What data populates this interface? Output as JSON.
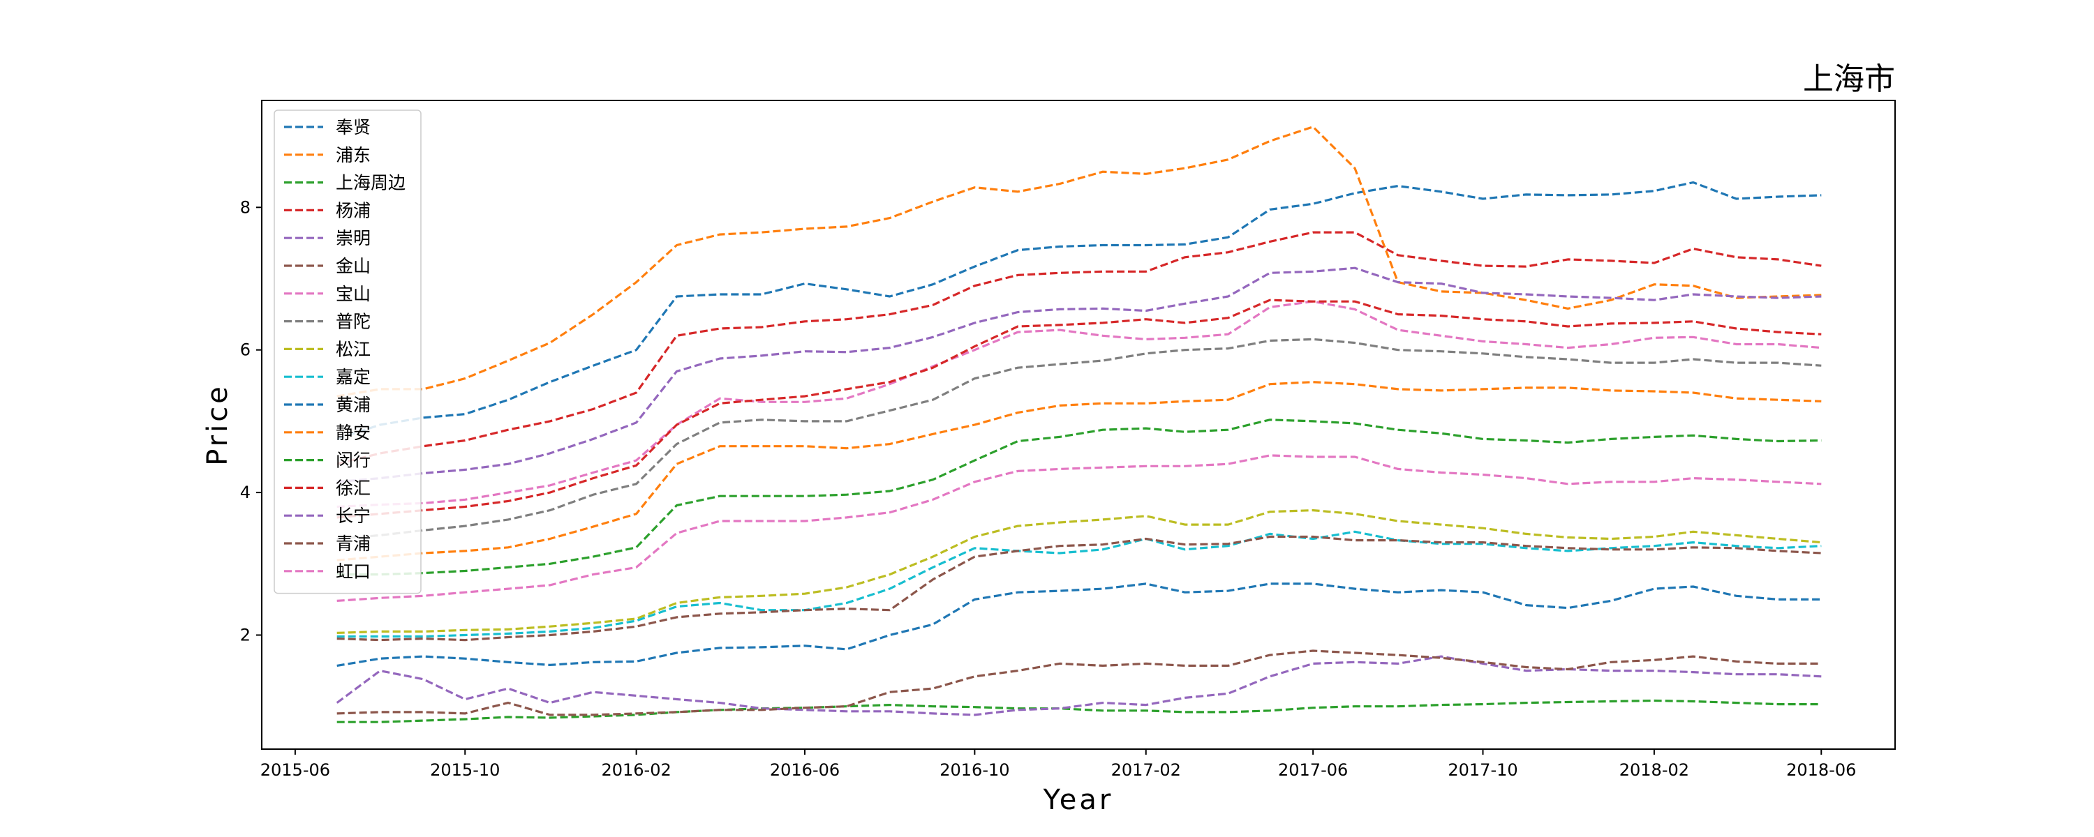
{
  "chart_data": {
    "type": "line",
    "title": "上海市",
    "xlabel": "Year",
    "ylabel": "Price",
    "x": [
      "2015-07",
      "2015-08",
      "2015-09",
      "2015-10",
      "2015-11",
      "2015-12",
      "2016-01",
      "2016-02",
      "2016-03",
      "2016-04",
      "2016-05",
      "2016-06",
      "2016-07",
      "2016-08",
      "2016-09",
      "2016-10",
      "2016-11",
      "2016-12",
      "2017-01",
      "2017-02",
      "2017-03",
      "2017-04",
      "2017-05",
      "2017-06",
      "2017-07",
      "2017-08",
      "2017-09",
      "2017-10",
      "2017-11",
      "2017-12",
      "2018-01",
      "2018-02",
      "2018-03",
      "2018-04",
      "2018-05",
      "2018-06"
    ],
    "xticks": [
      "2015-06",
      "2015-10",
      "2016-02",
      "2016-06",
      "2016-10",
      "2017-02",
      "2017-06",
      "2017-10",
      "2018-02",
      "2018-06"
    ],
    "xlim": [
      "2015-05-08",
      "2018-07-24"
    ],
    "yticks": [
      2,
      4,
      6,
      8
    ],
    "ylim": [
      0.4,
      9.5
    ],
    "grid": false,
    "legend_position": "upper-left",
    "line_style": "dashed",
    "series": [
      {
        "name": "奉贤",
        "color": "#1f77b4",
        "values": [
          4.75,
          4.95,
          5.05,
          5.1,
          5.3,
          5.55,
          5.78,
          6.0,
          6.75,
          6.78,
          6.78,
          6.93,
          6.85,
          6.75,
          6.92,
          7.17,
          7.4,
          7.45,
          7.47,
          7.47,
          7.48,
          7.58,
          7.97,
          8.05,
          8.2,
          8.3,
          8.22,
          8.12,
          8.18,
          8.17,
          8.18,
          8.23,
          8.35,
          8.12,
          8.15,
          8.17
        ]
      },
      {
        "name": "浦东",
        "color": "#ff7f0e",
        "values": [
          5.35,
          5.45,
          5.45,
          5.6,
          5.85,
          6.1,
          6.5,
          6.95,
          7.47,
          7.62,
          7.65,
          7.7,
          7.73,
          7.85,
          8.08,
          8.28,
          8.22,
          8.33,
          8.5,
          8.47,
          8.55,
          8.67,
          8.93,
          9.13,
          8.55,
          6.95,
          6.82,
          6.8,
          6.7,
          6.58,
          6.7,
          6.92,
          6.9,
          6.73,
          6.75,
          6.77
        ]
      },
      {
        "name": "上海周边",
        "color": "#2ca02c",
        "values": [
          0.78,
          0.78,
          0.8,
          0.82,
          0.85,
          0.84,
          0.86,
          0.88,
          0.92,
          0.95,
          0.97,
          0.98,
          1.0,
          1.02,
          1.0,
          0.99,
          0.97,
          0.97,
          0.94,
          0.94,
          0.92,
          0.92,
          0.94,
          0.98,
          1.0,
          1.0,
          1.02,
          1.03,
          1.05,
          1.06,
          1.07,
          1.08,
          1.07,
          1.05,
          1.03,
          1.03
        ]
      },
      {
        "name": "杨浦",
        "color": "#d62728",
        "values": [
          4.4,
          4.55,
          4.65,
          4.73,
          4.88,
          5.0,
          5.17,
          5.4,
          6.2,
          6.3,
          6.32,
          6.4,
          6.43,
          6.5,
          6.63,
          6.9,
          7.05,
          7.08,
          7.1,
          7.1,
          7.3,
          7.37,
          7.52,
          7.65,
          7.65,
          7.33,
          7.25,
          7.18,
          7.17,
          7.27,
          7.25,
          7.22,
          7.42,
          7.3,
          7.27,
          7.18
        ]
      },
      {
        "name": "崇明",
        "color": "#9467bd",
        "values": [
          1.05,
          1.5,
          1.38,
          1.1,
          1.25,
          1.05,
          1.2,
          1.15,
          1.1,
          1.05,
          0.97,
          0.95,
          0.93,
          0.93,
          0.9,
          0.88,
          0.95,
          0.97,
          1.05,
          1.02,
          1.12,
          1.18,
          1.42,
          1.6,
          1.62,
          1.6,
          1.7,
          1.6,
          1.5,
          1.52,
          1.5,
          1.5,
          1.48,
          1.45,
          1.45,
          1.42
        ]
      },
      {
        "name": "金山",
        "color": "#8c564b",
        "values": [
          0.9,
          0.92,
          0.92,
          0.9,
          1.05,
          0.88,
          0.88,
          0.9,
          0.92,
          0.95,
          0.95,
          0.98,
          1.0,
          1.2,
          1.25,
          1.42,
          1.5,
          1.6,
          1.57,
          1.6,
          1.57,
          1.57,
          1.72,
          1.78,
          1.75,
          1.72,
          1.68,
          1.62,
          1.55,
          1.52,
          1.62,
          1.65,
          1.7,
          1.63,
          1.6,
          1.6
        ]
      },
      {
        "name": "宝山",
        "color": "#e377c2",
        "values": [
          3.8,
          3.83,
          3.85,
          3.9,
          4.0,
          4.1,
          4.28,
          4.45,
          4.95,
          5.32,
          5.27,
          5.27,
          5.32,
          5.52,
          5.77,
          6.0,
          6.25,
          6.28,
          6.2,
          6.15,
          6.17,
          6.22,
          6.6,
          6.68,
          6.57,
          6.28,
          6.2,
          6.12,
          6.08,
          6.03,
          6.08,
          6.17,
          6.18,
          6.08,
          6.08,
          6.03
        ]
      },
      {
        "name": "普陀",
        "color": "#7f7f7f",
        "values": [
          3.35,
          3.4,
          3.47,
          3.53,
          3.62,
          3.75,
          3.97,
          4.12,
          4.68,
          4.98,
          5.02,
          5.0,
          5.0,
          5.15,
          5.3,
          5.6,
          5.75,
          5.8,
          5.85,
          5.95,
          6.0,
          6.02,
          6.13,
          6.15,
          6.1,
          6.0,
          5.98,
          5.95,
          5.9,
          5.87,
          5.82,
          5.82,
          5.87,
          5.82,
          5.82,
          5.78
        ]
      },
      {
        "name": "松江",
        "color": "#bcbd22",
        "values": [
          2.03,
          2.05,
          2.05,
          2.07,
          2.08,
          2.12,
          2.17,
          2.23,
          2.45,
          2.53,
          2.55,
          2.58,
          2.67,
          2.85,
          3.1,
          3.38,
          3.53,
          3.58,
          3.62,
          3.67,
          3.55,
          3.55,
          3.73,
          3.75,
          3.7,
          3.6,
          3.55,
          3.5,
          3.42,
          3.37,
          3.35,
          3.38,
          3.45,
          3.4,
          3.35,
          3.3
        ]
      },
      {
        "name": "嘉定",
        "color": "#17becf",
        "values": [
          1.98,
          1.98,
          1.98,
          2.0,
          2.02,
          2.05,
          2.1,
          2.2,
          2.4,
          2.45,
          2.35,
          2.35,
          2.45,
          2.65,
          2.95,
          3.22,
          3.18,
          3.15,
          3.2,
          3.35,
          3.2,
          3.25,
          3.42,
          3.35,
          3.45,
          3.33,
          3.28,
          3.28,
          3.22,
          3.18,
          3.22,
          3.25,
          3.3,
          3.25,
          3.22,
          3.25
        ]
      },
      {
        "name": "黄浦",
        "color": "#1f77b4",
        "values": [
          1.57,
          1.67,
          1.7,
          1.67,
          1.62,
          1.58,
          1.62,
          1.63,
          1.75,
          1.82,
          1.83,
          1.85,
          1.8,
          2.0,
          2.15,
          2.5,
          2.6,
          2.62,
          2.65,
          2.72,
          2.6,
          2.62,
          2.72,
          2.72,
          2.65,
          2.6,
          2.63,
          2.6,
          2.42,
          2.38,
          2.48,
          2.65,
          2.68,
          2.55,
          2.5,
          2.5
        ]
      },
      {
        "name": "静安",
        "color": "#ff7f0e",
        "values": [
          3.05,
          3.1,
          3.15,
          3.18,
          3.23,
          3.35,
          3.52,
          3.7,
          4.4,
          4.65,
          4.65,
          4.65,
          4.62,
          4.68,
          4.82,
          4.95,
          5.12,
          5.22,
          5.25,
          5.25,
          5.28,
          5.3,
          5.52,
          5.55,
          5.52,
          5.45,
          5.43,
          5.45,
          5.47,
          5.47,
          5.43,
          5.42,
          5.4,
          5.32,
          5.3,
          5.28
        ]
      },
      {
        "name": "闵行",
        "color": "#2ca02c",
        "values": [
          2.85,
          2.85,
          2.87,
          2.9,
          2.95,
          3.0,
          3.1,
          3.23,
          3.82,
          3.95,
          3.95,
          3.95,
          3.97,
          4.02,
          4.18,
          4.45,
          4.72,
          4.78,
          4.88,
          4.9,
          4.85,
          4.88,
          5.02,
          5.0,
          4.97,
          4.88,
          4.83,
          4.75,
          4.73,
          4.7,
          4.75,
          4.78,
          4.8,
          4.75,
          4.72,
          4.73
        ]
      },
      {
        "name": "徐汇",
        "color": "#d62728",
        "values": [
          3.65,
          3.7,
          3.75,
          3.8,
          3.88,
          4.0,
          4.2,
          4.38,
          4.95,
          5.25,
          5.3,
          5.35,
          5.45,
          5.55,
          5.75,
          6.05,
          6.33,
          6.35,
          6.38,
          6.43,
          6.38,
          6.45,
          6.7,
          6.68,
          6.68,
          6.5,
          6.48,
          6.43,
          6.4,
          6.33,
          6.37,
          6.38,
          6.4,
          6.3,
          6.25,
          6.22
        ]
      },
      {
        "name": "长宁",
        "color": "#9467bd",
        "values": [
          4.15,
          4.2,
          4.27,
          4.32,
          4.4,
          4.55,
          4.75,
          4.98,
          5.7,
          5.88,
          5.92,
          5.98,
          5.97,
          6.03,
          6.18,
          6.38,
          6.53,
          6.57,
          6.58,
          6.55,
          6.65,
          6.75,
          7.08,
          7.1,
          7.15,
          6.95,
          6.93,
          6.8,
          6.78,
          6.75,
          6.73,
          6.7,
          6.78,
          6.75,
          6.73,
          6.75
        ]
      },
      {
        "name": "青浦",
        "color": "#8c564b",
        "values": [
          1.95,
          1.93,
          1.95,
          1.93,
          1.97,
          2.0,
          2.05,
          2.12,
          2.25,
          2.3,
          2.32,
          2.35,
          2.37,
          2.35,
          2.78,
          3.1,
          3.18,
          3.25,
          3.27,
          3.35,
          3.27,
          3.28,
          3.38,
          3.38,
          3.33,
          3.33,
          3.3,
          3.3,
          3.25,
          3.22,
          3.2,
          3.2,
          3.23,
          3.22,
          3.18,
          3.15
        ]
      },
      {
        "name": "虹口",
        "color": "#e377c2",
        "values": [
          2.48,
          2.52,
          2.55,
          2.6,
          2.65,
          2.7,
          2.85,
          2.95,
          3.43,
          3.6,
          3.6,
          3.6,
          3.65,
          3.72,
          3.9,
          4.15,
          4.3,
          4.33,
          4.35,
          4.37,
          4.37,
          4.4,
          4.52,
          4.5,
          4.5,
          4.33,
          4.28,
          4.25,
          4.2,
          4.12,
          4.15,
          4.15,
          4.2,
          4.18,
          4.15,
          4.12
        ]
      }
    ]
  }
}
